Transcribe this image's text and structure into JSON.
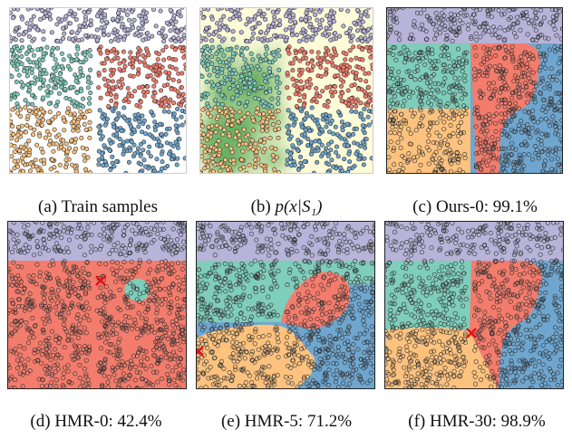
{
  "figure": {
    "panels": [
      {
        "id": "a",
        "caption": "(a) Train samples",
        "type": "train_samples"
      },
      {
        "id": "b",
        "caption_prefix": "(b) ",
        "caption_math": "p(x|S₁)",
        "type": "density_S1"
      },
      {
        "id": "c",
        "caption_prefix": "(c) Ours-0: ",
        "caption_math": "99.1%",
        "type": "decision_boundary",
        "accuracy": "99.1%"
      },
      {
        "id": "d",
        "caption_prefix": "(d) HMR-0: ",
        "caption_math": "42.4%",
        "type": "decision_boundary",
        "accuracy": "42.4%"
      },
      {
        "id": "e",
        "caption_prefix": "(e) HMR-5: ",
        "caption_math": "71.2%",
        "type": "decision_boundary",
        "accuracy": "71.2%"
      },
      {
        "id": "f",
        "caption_prefix": "(f) HMR-30: ",
        "caption_math": "98.9%",
        "type": "decision_boundary",
        "accuracy": "98.9%"
      }
    ],
    "colors": {
      "purple": "#b7b3d9",
      "teal": "#7fcdbb",
      "red": "#f47c6c",
      "orange": "#fdc27e",
      "blue": "#6fa6cf",
      "density_bg": "#fdfbd8",
      "density_fg": "#4ea24e",
      "marker": "#e8101a"
    }
  }
}
